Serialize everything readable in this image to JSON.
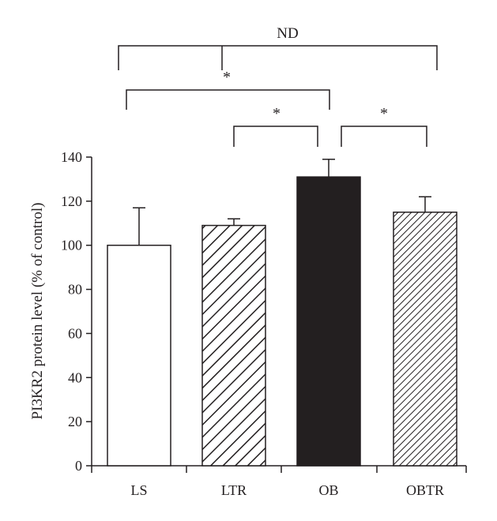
{
  "chart_data": {
    "type": "bar",
    "title": "",
    "xlabel": "",
    "ylabel": "PI3KR2 protein level (% of control)",
    "categories": [
      "LS",
      "LTR",
      "OB",
      "OBTR"
    ],
    "values": [
      100,
      109,
      131,
      115
    ],
    "errors": [
      17,
      3,
      8,
      7
    ],
    "bar_styles": [
      "white",
      "hatch-wide",
      "black",
      "hatch-dense"
    ],
    "ylim": [
      0,
      140
    ],
    "yticks": [
      0,
      20,
      40,
      60,
      80,
      100,
      120,
      140
    ],
    "grid": false,
    "legend": "none",
    "annotations": [
      {
        "label": "ND",
        "groups": [
          "LS",
          "LTR",
          "OBTR"
        ]
      },
      {
        "label": "*",
        "groups": [
          "LS",
          "OB"
        ]
      },
      {
        "label": "*",
        "groups": [
          "LTR",
          "OB"
        ]
      },
      {
        "label": "*",
        "groups": [
          "OB",
          "OBTR"
        ]
      }
    ]
  }
}
